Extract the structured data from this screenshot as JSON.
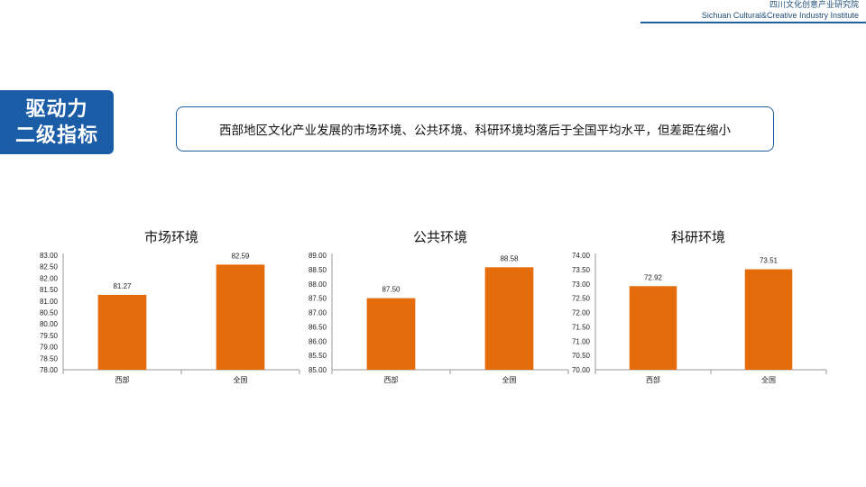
{
  "header": {
    "org_cn": "四川文化创意产业研究院",
    "org_en": "Sichuan Cultural&Creative Industry Institute"
  },
  "section": {
    "line1": "驱动力",
    "line2": "二级指标"
  },
  "headline": "西部地区文化产业发展的市场环境、公共环境、科研环境均落后于全国平均水平，但差距在缩小",
  "colors": {
    "bar": "#e46c0a",
    "accent": "#1b5ca6"
  },
  "chart_data": [
    {
      "type": "bar",
      "title": "市场环境",
      "categories": [
        "西部",
        "全国"
      ],
      "values": [
        81.27,
        82.59
      ],
      "value_labels": [
        "81.27",
        "82.59"
      ],
      "ylim": [
        78.0,
        83.0
      ],
      "yticks": [
        "78.00",
        "78.50",
        "79.00",
        "79.50",
        "80.00",
        "80.50",
        "81.00",
        "81.50",
        "82.00",
        "82.50",
        "83.00"
      ],
      "grid": false,
      "legend": "none"
    },
    {
      "type": "bar",
      "title": "公共环境",
      "categories": [
        "西部",
        "全国"
      ],
      "values": [
        87.5,
        88.58
      ],
      "value_labels": [
        "87.50",
        "88.58"
      ],
      "ylim": [
        85.0,
        89.0
      ],
      "yticks": [
        "85.00",
        "85.50",
        "86.00",
        "86.50",
        "87.00",
        "87.50",
        "88.00",
        "88.50",
        "89.00"
      ],
      "grid": false,
      "legend": "none"
    },
    {
      "type": "bar",
      "title": "科研环境",
      "categories": [
        "西部",
        "全国"
      ],
      "values": [
        72.92,
        73.51
      ],
      "value_labels": [
        "72.92",
        "73.51"
      ],
      "ylim": [
        70.0,
        74.0
      ],
      "yticks": [
        "70.00",
        "70.50",
        "71.00",
        "71.50",
        "72.00",
        "72.50",
        "73.00",
        "73.50",
        "74.00"
      ],
      "grid": false,
      "legend": "none"
    }
  ]
}
